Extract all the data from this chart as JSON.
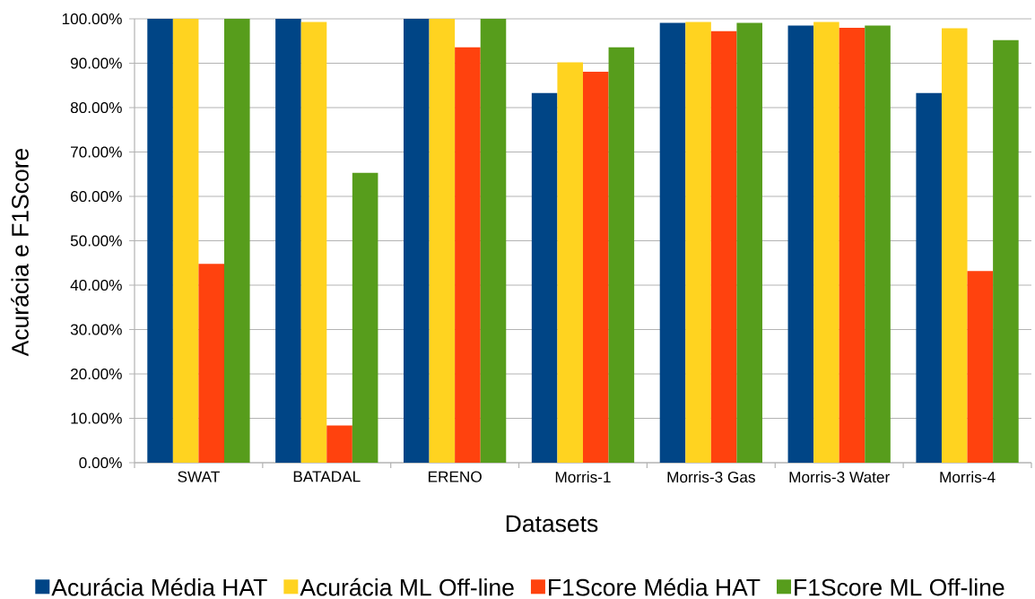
{
  "chart_data": {
    "type": "bar",
    "xlabel": "Datasets",
    "ylabel": "Acurácia e F1Score",
    "categories": [
      "SWAT",
      "BATADAL",
      "ERENO",
      "Morris-1",
      "Morris-3 Gas",
      "Morris-3 Water",
      "Morris-4"
    ],
    "series": [
      {
        "name": "Acurácia Média HAT",
        "color": "#004586",
        "values": [
          100,
          100,
          100,
          83.3,
          99.1,
          98.5,
          83.3
        ]
      },
      {
        "name": "Acurácia ML Off-line",
        "color": "#ffd320",
        "values": [
          100,
          99.3,
          100,
          90.2,
          99.3,
          99.3,
          97.9
        ]
      },
      {
        "name": "F1Score Média HAT",
        "color": "#ff420e",
        "values": [
          44.8,
          8.4,
          93.6,
          88.1,
          97.2,
          98.0,
          43.2
        ]
      },
      {
        "name": "F1Score ML Off-line",
        "color": "#579d1c",
        "values": [
          100,
          65.3,
          100,
          93.6,
          99.1,
          98.5,
          95.2
        ]
      }
    ],
    "ylim": [
      0,
      100
    ],
    "yticks": [
      {
        "value": 0,
        "label": "0.00%"
      },
      {
        "value": 10,
        "label": "10.00%"
      },
      {
        "value": 20,
        "label": "20.00%"
      },
      {
        "value": 30,
        "label": "30.00%"
      },
      {
        "value": 40,
        "label": "40.00%"
      },
      {
        "value": 50,
        "label": "50.00%"
      },
      {
        "value": 60,
        "label": "60.00%"
      },
      {
        "value": 70,
        "label": "70.00%"
      },
      {
        "value": 80,
        "label": "80.00%"
      },
      {
        "value": 90,
        "label": "90.00%"
      },
      {
        "value": 100,
        "label": "100.00%"
      }
    ],
    "grid": "y",
    "legend": "bottom"
  }
}
